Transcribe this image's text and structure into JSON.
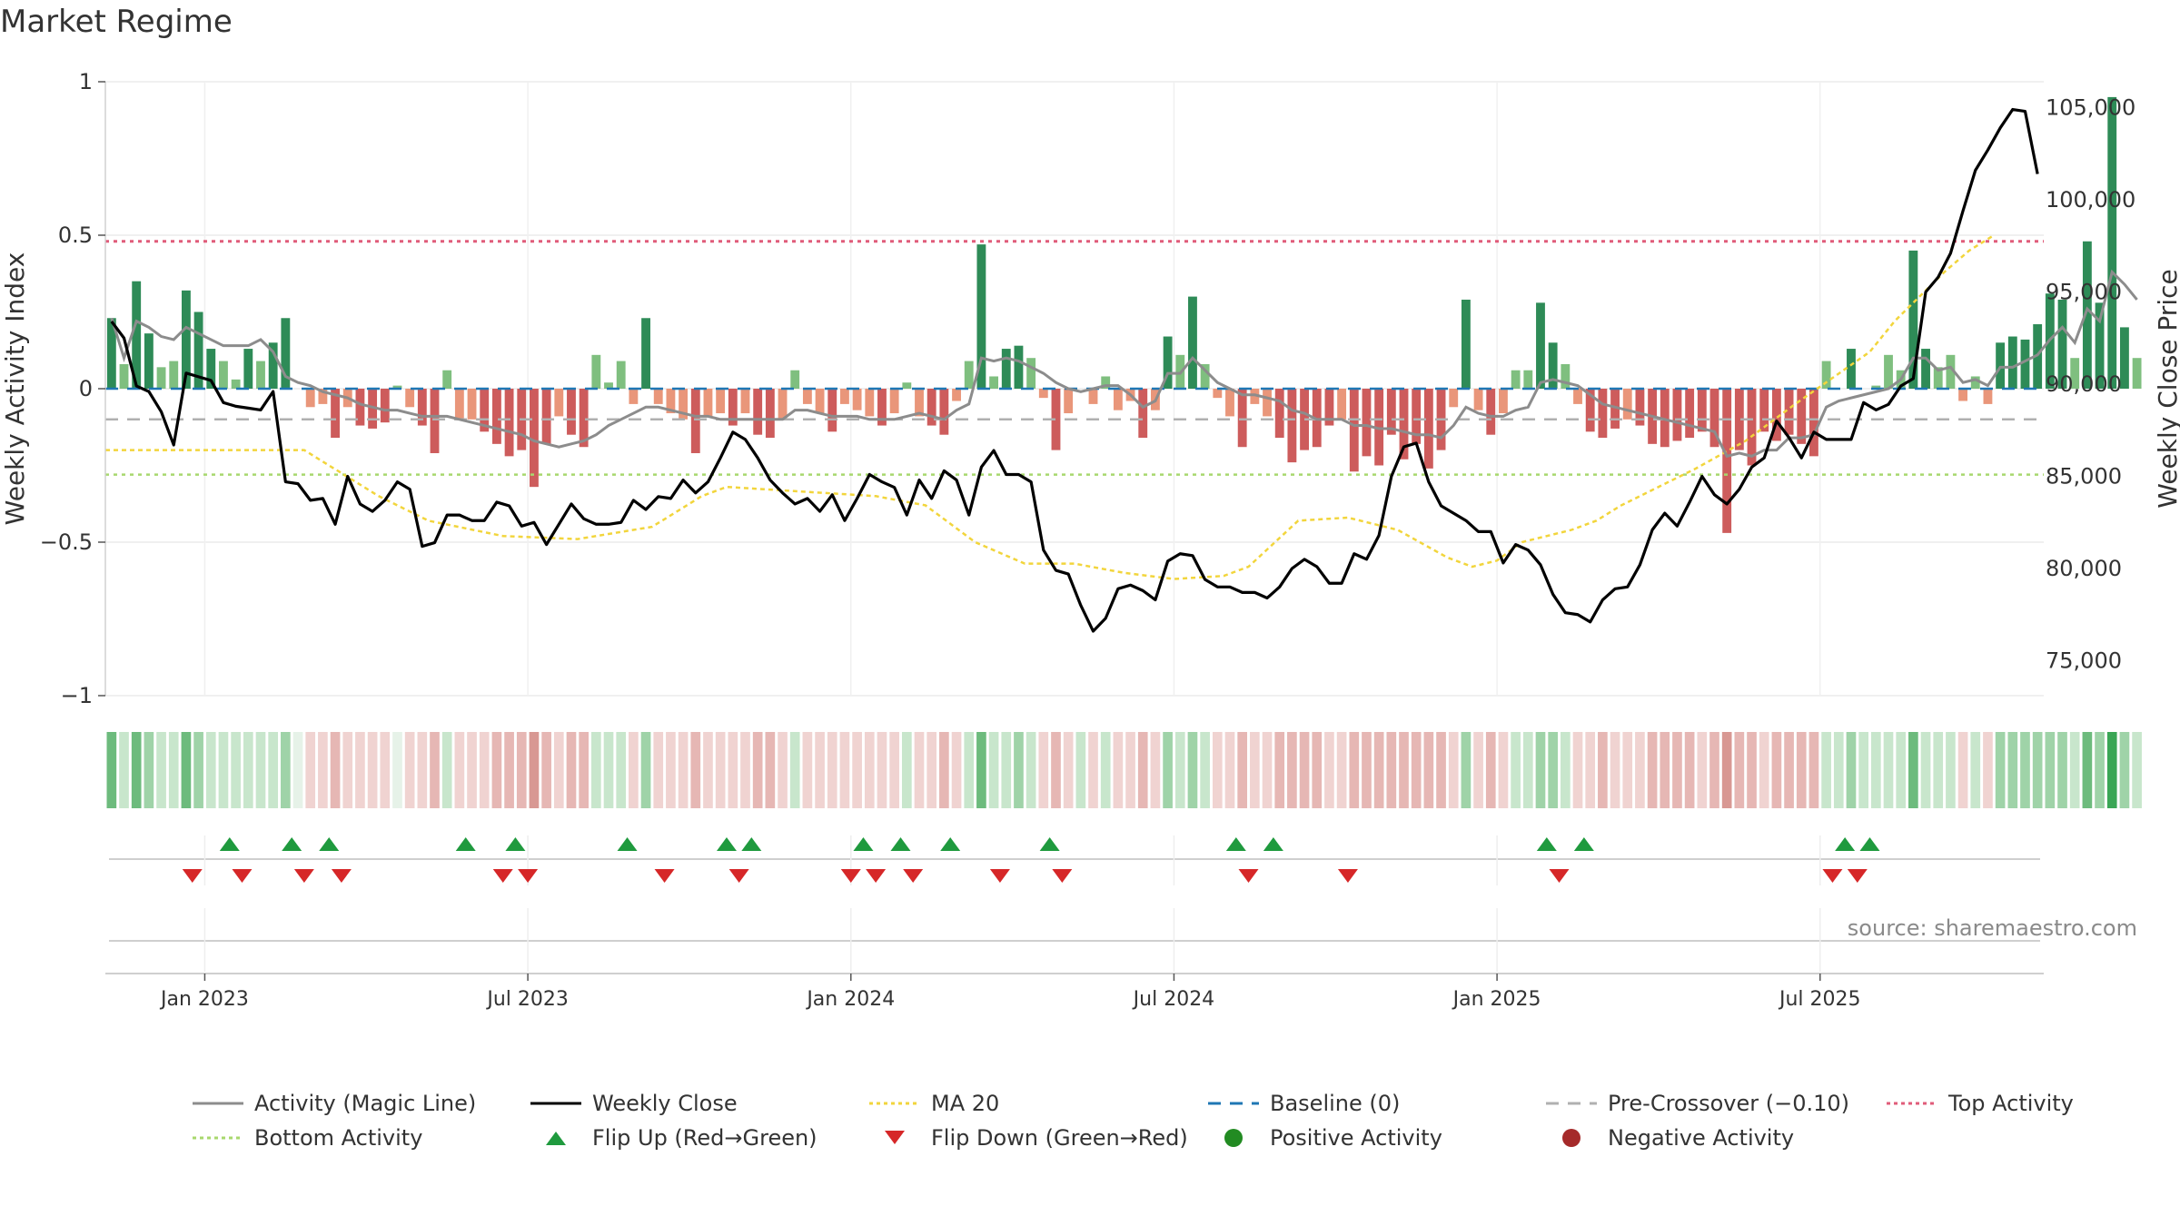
{
  "title": "Market Regime",
  "source": "source: sharemaestro.com",
  "colors": {
    "green_dark": "#2e8b57",
    "green_light": "#7fbf7f",
    "red_dark": "#cd5c5c",
    "red_light": "#e9967a",
    "close_line": "#000000",
    "magic_line": "#8c8c8c",
    "ma20": "#f2d53c",
    "baseline": "#1f77b4",
    "precross": "#b0b0b0",
    "top_activity": "#e05c7a",
    "bottom_activity": "#a8d86e",
    "flip_up": "#1f9a3e",
    "flip_down": "#d62728",
    "positive": "#228b22",
    "negative": "#a52a2a"
  },
  "legend": [
    {
      "key": "magic",
      "label": "Activity (Magic Line)",
      "icon": "solid-gray-line"
    },
    {
      "key": "close",
      "label": "Weekly Close",
      "icon": "solid-black-line"
    },
    {
      "key": "ma20",
      "label": "MA 20",
      "icon": "dotted-yellow-line"
    },
    {
      "key": "baseline",
      "label": "Baseline (0)",
      "icon": "dashed-blue-line"
    },
    {
      "key": "precross",
      "label": "Pre-Crossover (−0.10)",
      "icon": "dashed-gray-line"
    },
    {
      "key": "top",
      "label": "Top Activity",
      "icon": "dotted-pink-line"
    },
    {
      "key": "bottom",
      "label": "Bottom Activity",
      "icon": "dotted-green-line"
    },
    {
      "key": "flipup",
      "label": "Flip Up (Red→Green)",
      "icon": "triangle-up-icon"
    },
    {
      "key": "flipdown",
      "label": "Flip Down (Green→Red)",
      "icon": "triangle-down-icon"
    },
    {
      "key": "pos",
      "label": "Positive Activity",
      "icon": "green-dot-icon"
    },
    {
      "key": "neg",
      "label": "Negative Activity",
      "icon": "red-dot-icon"
    }
  ],
  "chart_data": {
    "type": "bar",
    "title": "Market Regime",
    "ylabel": "Weekly Activity Index",
    "y2label": "Weekly Close Price",
    "ylim": [
      -1,
      1
    ],
    "y2lim": [
      72000,
      107000
    ],
    "yticks": [
      {
        "v": 1,
        "label": "1"
      },
      {
        "v": 0.5,
        "label": "0.5"
      },
      {
        "v": 0,
        "label": "0"
      },
      {
        "v": -0.5,
        "label": "−0.5"
      },
      {
        "v": -1,
        "label": "−1"
      }
    ],
    "y2ticks": [
      {
        "v": 105000,
        "label": "105,000"
      },
      {
        "v": 100000,
        "label": "100,000"
      },
      {
        "v": 95000,
        "label": "95,000"
      },
      {
        "v": 90000,
        "label": "90,000"
      },
      {
        "v": 85000,
        "label": "85,000"
      },
      {
        "v": 80000,
        "label": "80,000"
      },
      {
        "v": 75000,
        "label": "75,000"
      }
    ],
    "x_start_week": -8,
    "x_end_week": 148,
    "xticks": [
      {
        "week": 0,
        "label": "Jan 2023"
      },
      {
        "week": 26,
        "label": "Jul 2023"
      },
      {
        "week": 52,
        "label": "Jan 2024"
      },
      {
        "week": 78,
        "label": "Jul 2024"
      },
      {
        "week": 104,
        "label": "Jan 2025"
      },
      {
        "week": 130,
        "label": "Jul 2025"
      }
    ],
    "lines": {
      "top_activity": 0.48,
      "bottom_activity": -0.28,
      "pre_crossover": -0.1,
      "baseline": 0
    },
    "activity": [
      0.23,
      0.08,
      0.35,
      0.18,
      0.07,
      0.09,
      0.32,
      0.25,
      0.13,
      0.09,
      0.03,
      0.13,
      0.09,
      0.15,
      0.23,
      0,
      -0.06,
      -0.05,
      -0.16,
      -0.06,
      -0.12,
      -0.13,
      -0.11,
      0.01,
      -0.06,
      -0.12,
      -0.21,
      0.06,
      -0.1,
      -0.1,
      -0.14,
      -0.18,
      -0.22,
      -0.2,
      -0.32,
      -0.18,
      -0.09,
      -0.15,
      -0.19,
      0.11,
      0.02,
      0.09,
      -0.05,
      0.23,
      -0.05,
      -0.08,
      -0.1,
      -0.21,
      -0.09,
      -0.08,
      -0.12,
      -0.08,
      -0.15,
      -0.16,
      -0.1,
      0.06,
      -0.05,
      -0.08,
      -0.14,
      -0.05,
      -0.07,
      -0.09,
      -0.12,
      -0.08,
      0.02,
      -0.09,
      -0.12,
      -0.15,
      -0.04,
      0.09,
      0.47,
      0.04,
      0.13,
      0.14,
      0.1,
      -0.03,
      -0.2,
      -0.08,
      0,
      -0.05,
      0.04,
      -0.07,
      -0.04,
      -0.16,
      -0.07,
      0.17,
      0.11,
      0.3,
      0.08,
      -0.03,
      -0.09,
      -0.19,
      -0.05,
      -0.09,
      -0.16,
      -0.24,
      -0.2,
      -0.19,
      -0.12,
      -0.1,
      -0.27,
      -0.22,
      -0.25,
      -0.15,
      -0.23,
      -0.18,
      -0.26,
      -0.2,
      -0.06,
      0.29,
      -0.07,
      -0.15,
      -0.08,
      0.06,
      0.06,
      0.28,
      0.15,
      0.08,
      -0.05,
      -0.14,
      -0.16,
      -0.13,
      -0.1,
      -0.12,
      -0.18,
      -0.19,
      -0.17,
      -0.16,
      -0.14,
      -0.19,
      -0.47,
      -0.2,
      -0.25,
      -0.14,
      -0.17,
      -0.15,
      -0.18,
      -0.22,
      0.09,
      0,
      0.13,
      0,
      0.01,
      0.11,
      0.06,
      0.45,
      0.13,
      0.07,
      0.11,
      -0.04,
      0.04,
      -0.05,
      0.15,
      0.17,
      0.16,
      0.21,
      0.31,
      0.29,
      0.1,
      0.48,
      0.28,
      0.95,
      0.2,
      0.1
    ],
    "close": [
      93400,
      92500,
      89900,
      89600,
      88500,
      86700,
      90600,
      90400,
      90200,
      89000,
      88800,
      88700,
      88600,
      89600,
      84700,
      84600,
      83700,
      83800,
      82400,
      85000,
      83500,
      83100,
      83700,
      84700,
      84300,
      81200,
      81400,
      82900,
      82900,
      82600,
      82600,
      83600,
      83400,
      82300,
      82500,
      81300,
      82400,
      83500,
      82700,
      82400,
      82400,
      82500,
      83700,
      83200,
      83900,
      83800,
      84800,
      84100,
      84700,
      86000,
      87400,
      87000,
      86000,
      84800,
      84100,
      83500,
      83800,
      83100,
      84000,
      82600,
      83800,
      85100,
      84700,
      84400,
      82900,
      84800,
      83800,
      85300,
      84800,
      82900,
      85500,
      86400,
      85100,
      85100,
      84700,
      81000,
      79900,
      79700,
      78000,
      76600,
      77300,
      78900,
      79100,
      78800,
      78300,
      80400,
      80800,
      80700,
      79400,
      79000,
      79000,
      78700,
      78700,
      78400,
      79000,
      80000,
      80500,
      80100,
      79200,
      79200,
      80800,
      80500,
      81800,
      85000,
      86600,
      86800,
      84700,
      83400,
      83000,
      82600,
      82000,
      82000,
      80300,
      81300,
      81000,
      80200,
      78600,
      77600,
      77500,
      77100,
      78300,
      78900,
      79000,
      80200,
      82100,
      83000,
      82300,
      83600,
      85000,
      84000,
      83500,
      84300,
      85500,
      86000,
      88000,
      87100,
      86000,
      87400,
      87000,
      87000,
      87000,
      89000,
      88600,
      88900,
      89900,
      90300,
      95000,
      95800,
      97100,
      99400,
      101600,
      102700,
      103900,
      104900,
      104800,
      101400
    ],
    "magic": [
      0.23,
      0.1,
      0.22,
      0.2,
      0.17,
      0.16,
      0.2,
      0.18,
      0.16,
      0.14,
      0.14,
      0.14,
      0.16,
      0.12,
      0.04,
      0.02,
      0.01,
      -0.01,
      -0.02,
      -0.03,
      -0.05,
      -0.06,
      -0.07,
      -0.07,
      -0.08,
      -0.09,
      -0.09,
      -0.09,
      -0.1,
      -0.11,
      -0.12,
      -0.13,
      -0.14,
      -0.15,
      -0.17,
      -0.18,
      -0.19,
      -0.18,
      -0.17,
      -0.15,
      -0.12,
      -0.1,
      -0.08,
      -0.06,
      -0.06,
      -0.07,
      -0.08,
      -0.09,
      -0.09,
      -0.1,
      -0.1,
      -0.1,
      -0.1,
      -0.1,
      -0.1,
      -0.07,
      -0.07,
      -0.08,
      -0.09,
      -0.09,
      -0.09,
      -0.1,
      -0.1,
      -0.1,
      -0.09,
      -0.08,
      -0.09,
      -0.1,
      -0.07,
      -0.05,
      0.1,
      0.09,
      0.1,
      0.09,
      0.07,
      0.05,
      0.02,
      0,
      -0.01,
      0,
      0.01,
      0.01,
      -0.02,
      -0.06,
      -0.04,
      0.05,
      0.05,
      0.1,
      0.06,
      0.02,
      0,
      -0.02,
      -0.02,
      -0.03,
      -0.04,
      -0.07,
      -0.08,
      -0.1,
      -0.1,
      -0.1,
      -0.12,
      -0.12,
      -0.13,
      -0.13,
      -0.14,
      -0.15,
      -0.15,
      -0.16,
      -0.12,
      -0.06,
      -0.08,
      -0.09,
      -0.09,
      -0.07,
      -0.06,
      0.02,
      0.03,
      0.02,
      0.01,
      -0.02,
      -0.05,
      -0.06,
      -0.07,
      -0.08,
      -0.09,
      -0.1,
      -0.11,
      -0.12,
      -0.13,
      -0.14,
      -0.22,
      -0.21,
      -0.22,
      -0.2,
      -0.2,
      -0.16,
      -0.16,
      -0.15,
      -0.06,
      -0.04,
      -0.03,
      -0.02,
      -0.01,
      0,
      0.03,
      0.1,
      0.1,
      0.06,
      0.07,
      0.02,
      0.03,
      0.01,
      0.07,
      0.07,
      0.09,
      0.11,
      0.16,
      0.2,
      0.15,
      0.26,
      0.22,
      0.38,
      0.34,
      0.29
    ],
    "ma20_points": [
      [
        -8,
        -0.2
      ],
      [
        8,
        -0.2
      ],
      [
        10,
        -0.25
      ],
      [
        14,
        -0.35
      ],
      [
        18,
        -0.43
      ],
      [
        24,
        -0.48
      ],
      [
        30,
        -0.49
      ],
      [
        36,
        -0.45
      ],
      [
        40,
        -0.35
      ],
      [
        42,
        -0.32
      ],
      [
        50,
        -0.34
      ],
      [
        54,
        -0.35
      ],
      [
        58,
        -0.38
      ],
      [
        62,
        -0.5
      ],
      [
        66,
        -0.57
      ],
      [
        70,
        -0.57
      ],
      [
        74,
        -0.6
      ],
      [
        78,
        -0.62
      ],
      [
        82,
        -0.61
      ],
      [
        84,
        -0.58
      ],
      [
        88,
        -0.43
      ],
      [
        92,
        -0.42
      ],
      [
        96,
        -0.46
      ],
      [
        100,
        -0.55
      ],
      [
        102,
        -0.58
      ],
      [
        104,
        -0.56
      ],
      [
        106,
        -0.5
      ],
      [
        110,
        -0.46
      ],
      [
        112,
        -0.43
      ],
      [
        114,
        -0.38
      ],
      [
        120,
        -0.26
      ],
      [
        124,
        -0.17
      ],
      [
        128,
        -0.05
      ],
      [
        134,
        0.12
      ],
      [
        136,
        0.22
      ],
      [
        140,
        0.38
      ],
      [
        142,
        0.45
      ],
      [
        144,
        0.5
      ]
    ],
    "regime_strip": [
      3,
      1,
      3,
      2,
      1,
      1,
      3,
      2,
      1,
      1,
      1,
      1,
      1,
      1,
      2,
      0,
      -1,
      -1,
      -2,
      -1,
      -1,
      -1,
      -1,
      0,
      -1,
      -1,
      -2,
      1,
      -1,
      -1,
      -1,
      -2,
      -2,
      -2,
      -3,
      -2,
      -1,
      -2,
      -2,
      1,
      1,
      1,
      -1,
      2,
      -1,
      -1,
      -1,
      -2,
      -1,
      -1,
      -1,
      -1,
      -2,
      -2,
      -1,
      1,
      -1,
      -1,
      -1,
      -1,
      -1,
      -1,
      -1,
      -1,
      1,
      -1,
      -1,
      -2,
      -1,
      1,
      3,
      1,
      1,
      2,
      1,
      -1,
      -2,
      -1,
      1,
      -1,
      1,
      -1,
      -1,
      -2,
      -1,
      2,
      1,
      2,
      1,
      -1,
      -1,
      -2,
      -1,
      -1,
      -2,
      -2,
      -2,
      -2,
      -1,
      -1,
      -2,
      -2,
      -2,
      -2,
      -2,
      -2,
      -2,
      -2,
      -1,
      2,
      -1,
      -2,
      -1,
      1,
      1,
      2,
      2,
      1,
      -1,
      -1,
      -2,
      -1,
      -1,
      -1,
      -2,
      -2,
      -2,
      -2,
      -1,
      -2,
      -3,
      -2,
      -2,
      -1,
      -2,
      -2,
      -2,
      -2,
      1,
      1,
      2,
      1,
      1,
      1,
      1,
      3,
      1,
      1,
      1,
      -1,
      1,
      -1,
      2,
      2,
      2,
      2,
      2,
      2,
      1,
      3,
      2,
      4,
      2,
      1
    ],
    "flip_up_weeks": [
      2,
      7,
      10,
      21,
      25,
      34,
      42,
      44,
      53,
      56,
      60,
      68,
      83,
      86,
      108,
      111,
      132,
      134
    ],
    "flip_down_weeks": [
      -1,
      3,
      8,
      11,
      24,
      26,
      37,
      43,
      52,
      54,
      57,
      64,
      69,
      84,
      92,
      109,
      131,
      133
    ]
  }
}
